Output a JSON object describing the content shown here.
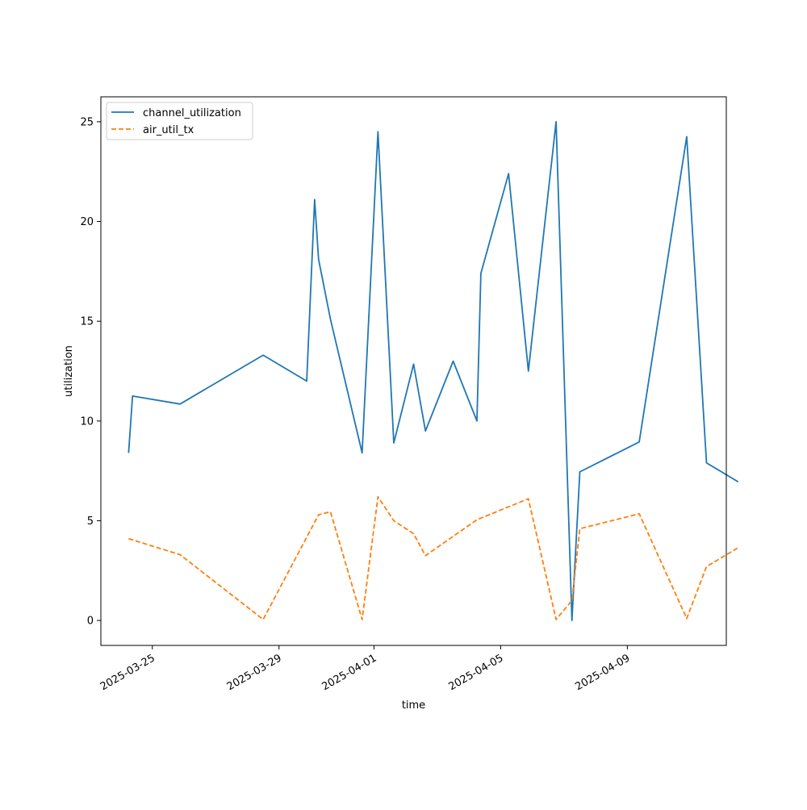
{
  "chart_data": {
    "type": "line",
    "title": "",
    "xlabel": "time",
    "ylabel": "utilization",
    "x_axis_type": "date",
    "xlim": [
      "2025-03-23T09:00",
      "2025-04-12T03:00"
    ],
    "ylim": [
      -1.25,
      26.25
    ],
    "x_ticks": [
      "2025-03-25",
      "2025-03-29",
      "2025-04-01",
      "2025-04-05",
      "2025-04-09"
    ],
    "y_ticks": [
      0,
      5,
      10,
      15,
      20,
      25
    ],
    "grid": false,
    "legend_position": "top-left",
    "series": [
      {
        "name": "channel_utilization",
        "color": "#1f77b4",
        "dash": "solid",
        "points": [
          {
            "x": "2025-03-24T06:00",
            "y": 8.4
          },
          {
            "x": "2025-03-24T09:00",
            "y": 11.25
          },
          {
            "x": "2025-03-25T21:00",
            "y": 10.85
          },
          {
            "x": "2025-03-28T12:00",
            "y": 13.3
          },
          {
            "x": "2025-03-29T21:00",
            "y": 12.0
          },
          {
            "x": "2025-03-30T03:00",
            "y": 21.1
          },
          {
            "x": "2025-03-30T06:00",
            "y": 18.1
          },
          {
            "x": "2025-03-30T15:00",
            "y": 15.1
          },
          {
            "x": "2025-03-31T15:00",
            "y": 8.4
          },
          {
            "x": "2025-04-01T03:00",
            "y": 24.5
          },
          {
            "x": "2025-04-01T15:00",
            "y": 8.9
          },
          {
            "x": "2025-04-02T06:00",
            "y": 12.85
          },
          {
            "x": "2025-04-02T15:00",
            "y": 9.5
          },
          {
            "x": "2025-04-03T12:00",
            "y": 13.0
          },
          {
            "x": "2025-04-04T06:00",
            "y": 10.0
          },
          {
            "x": "2025-04-04T09:00",
            "y": 17.4
          },
          {
            "x": "2025-04-05T06:00",
            "y": 22.4
          },
          {
            "x": "2025-04-05T21:00",
            "y": 12.5
          },
          {
            "x": "2025-04-06T18:00",
            "y": 25.0
          },
          {
            "x": "2025-04-07T06:00",
            "y": 0.0
          },
          {
            "x": "2025-04-07T12:00",
            "y": 7.45
          },
          {
            "x": "2025-04-09T09:00",
            "y": 8.95
          },
          {
            "x": "2025-04-10T21:00",
            "y": 24.25
          },
          {
            "x": "2025-04-11T12:00",
            "y": 7.9
          },
          {
            "x": "2025-04-12T12:00",
            "y": 6.95
          }
        ]
      },
      {
        "name": "air_util_tx",
        "color": "#ff7f0e",
        "dash": "dashed",
        "points": [
          {
            "x": "2025-03-24T06:00",
            "y": 4.1
          },
          {
            "x": "2025-03-25T21:00",
            "y": 3.3
          },
          {
            "x": "2025-03-28T12:00",
            "y": 0.05
          },
          {
            "x": "2025-03-30T06:00",
            "y": 5.3
          },
          {
            "x": "2025-03-30T15:00",
            "y": 5.45
          },
          {
            "x": "2025-03-31T15:00",
            "y": 0.05
          },
          {
            "x": "2025-04-01T03:00",
            "y": 6.2
          },
          {
            "x": "2025-04-01T15:00",
            "y": 5.0
          },
          {
            "x": "2025-04-02T06:00",
            "y": 4.35
          },
          {
            "x": "2025-04-02T15:00",
            "y": 3.25
          },
          {
            "x": "2025-04-04T06:00",
            "y": 5.05
          },
          {
            "x": "2025-04-05T21:00",
            "y": 6.1
          },
          {
            "x": "2025-04-06T18:00",
            "y": 0.05
          },
          {
            "x": "2025-04-07T06:00",
            "y": 1.0
          },
          {
            "x": "2025-04-07T12:00",
            "y": 4.6
          },
          {
            "x": "2025-04-09T09:00",
            "y": 5.35
          },
          {
            "x": "2025-04-10T21:00",
            "y": 0.1
          },
          {
            "x": "2025-04-11T12:00",
            "y": 2.7
          },
          {
            "x": "2025-04-12T12:00",
            "y": 3.65
          }
        ]
      }
    ]
  }
}
